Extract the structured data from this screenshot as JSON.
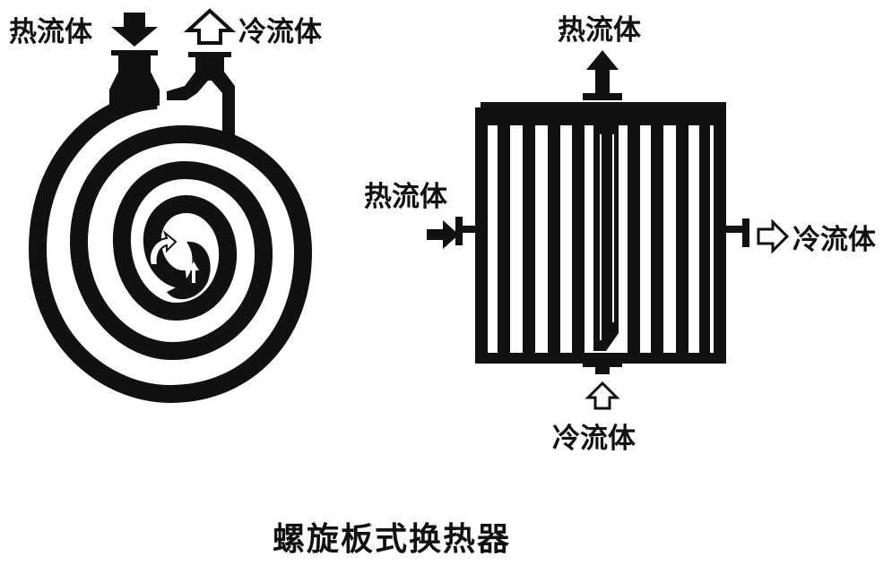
{
  "colors": {
    "ink": "#111111",
    "paper": "#ffffff"
  },
  "spiral_exchanger": {
    "hot_fluid_inlet_label": "热流体",
    "cold_fluid_outlet_label": "冷流体",
    "hot_arrow_icon": "arrow-down-filled-icon",
    "cold_arrow_icon": "arrow-up-outline-icon"
  },
  "section_view": {
    "hot_outlet_label": "热流体",
    "hot_inlet_label": "热流体",
    "cold_outlet_label": "冷流体",
    "cold_inlet_label": "冷流体",
    "hot_out_icon": "arrow-up-filled-icon",
    "hot_in_icon": "arrow-right-filled-icon",
    "cold_out_icon": "arrow-right-outline-icon",
    "cold_in_icon": "arrow-up-outline-icon"
  },
  "caption": "螺旋板式换热器"
}
